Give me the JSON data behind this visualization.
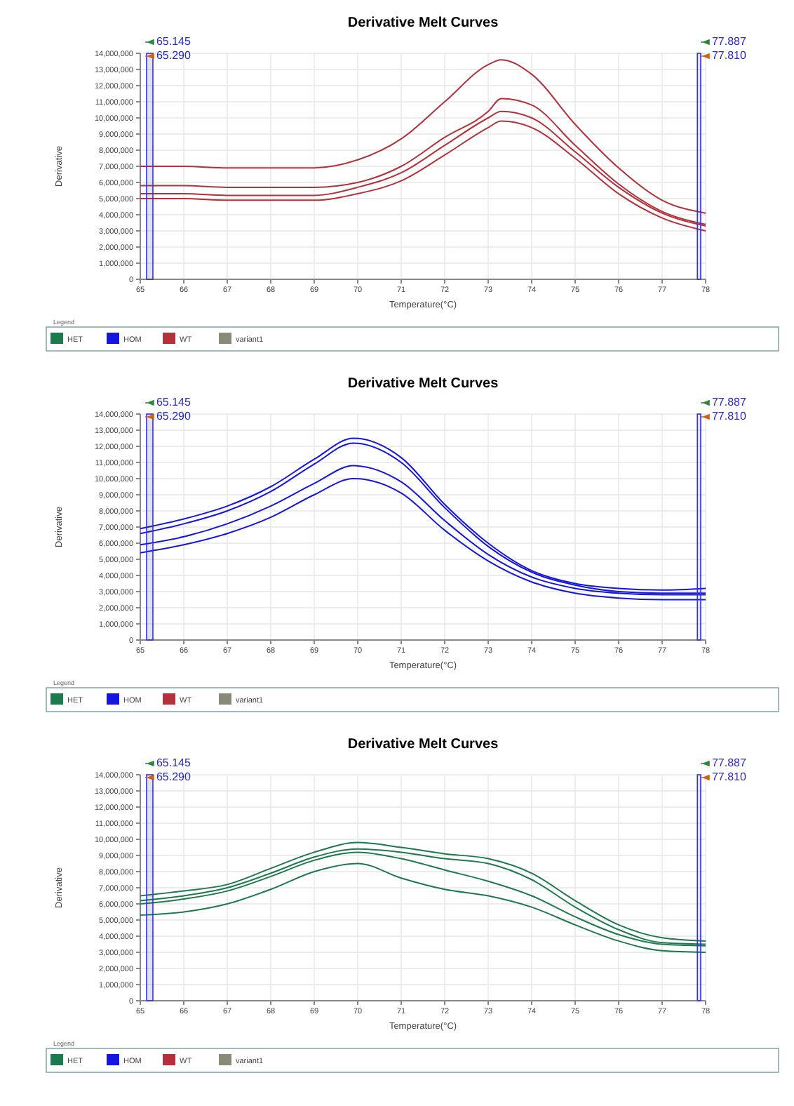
{
  "chart_data": [
    {
      "type": "line",
      "title": "Derivative Melt Curves",
      "xlabel": "Temperature(°C)",
      "ylabel": "Derivative",
      "legend_title": "Legend",
      "legend": "bottom",
      "grid": true,
      "marker": "none",
      "line_style": "solid",
      "x": [
        65,
        66,
        67,
        68,
        69,
        70,
        71,
        72,
        73,
        73.3,
        74,
        75,
        76,
        77,
        78
      ],
      "xlim": [
        65,
        78
      ],
      "xticks": [
        65,
        66,
        67,
        68,
        69,
        70,
        71,
        72,
        73,
        74,
        75,
        76,
        77,
        78
      ],
      "ylim": [
        0,
        14000000
      ],
      "yticks": [
        {
          "value": 0,
          "label": "0"
        },
        {
          "value": 1000000,
          "label": "1,000,000"
        },
        {
          "value": 2000000,
          "label": "2,000,000"
        },
        {
          "value": 3000000,
          "label": "3,000,000"
        },
        {
          "value": 4000000,
          "label": "4,000,000"
        },
        {
          "value": 5000000,
          "label": "5,000,000"
        },
        {
          "value": 6000000,
          "label": "6,000,000"
        },
        {
          "value": 7000000,
          "label": "7,000,000"
        },
        {
          "value": 8000000,
          "label": "8,000,000"
        },
        {
          "value": 9000000,
          "label": "9,000,000"
        },
        {
          "value": 10000000,
          "label": "10,000,000"
        },
        {
          "value": 11000000,
          "label": "11,000,000"
        },
        {
          "value": 12000000,
          "label": "12,000,000"
        },
        {
          "value": 13000000,
          "label": "13,000,000"
        },
        {
          "value": 14000000,
          "label": "14,000,000"
        }
      ],
      "bands": [
        {
          "axis": "x",
          "from": 65.145,
          "to": 65.29,
          "color": "#3333dd"
        },
        {
          "axis": "x",
          "from": 77.81,
          "to": 77.887,
          "color": "#3333dd"
        }
      ],
      "annotations": [
        "65.145",
        "65.290",
        "77.887",
        "77.810"
      ],
      "series": [
        {
          "name": "HET",
          "color": "#1d7a4c",
          "values": [
            null,
            null,
            null,
            null,
            null,
            null,
            null,
            null,
            null,
            null,
            null,
            null,
            null,
            null,
            null
          ]
        },
        {
          "name": "HOM",
          "color": "#1515e0",
          "values": [
            null,
            null,
            null,
            null,
            null,
            null,
            null,
            null,
            null,
            null,
            null,
            null,
            null,
            null,
            null
          ]
        },
        {
          "name": "WT",
          "color": "#b5303a",
          "values": [
            7000000,
            7000000,
            6900000,
            6900000,
            6900000,
            7400000,
            8700000,
            11000000,
            13300000,
            13600000,
            12700000,
            9600000,
            6900000,
            4900000,
            4100000
          ]
        },
        {
          "color": "#b5303a",
          "values": [
            5800000,
            5800000,
            5700000,
            5700000,
            5700000,
            6000000,
            7000000,
            8800000,
            10400000,
            11200000,
            10800000,
            8300000,
            5900000,
            4200000,
            3400000
          ]
        },
        {
          "color": "#b5303a",
          "values": [
            5300000,
            5300000,
            5200000,
            5200000,
            5200000,
            5700000,
            6600000,
            8300000,
            10000000,
            10400000,
            10000000,
            7900000,
            5700000,
            4100000,
            3300000
          ]
        },
        {
          "color": "#b5303a",
          "values": [
            5000000,
            5000000,
            4900000,
            4900000,
            4900000,
            5300000,
            6100000,
            7700000,
            9400000,
            9800000,
            9400000,
            7500000,
            5300000,
            3800000,
            3000000
          ]
        },
        {
          "name": "variant1",
          "color": "#8a8a78",
          "values": [
            null,
            null,
            null,
            null,
            null,
            null,
            null,
            null,
            null,
            null,
            null,
            null,
            null,
            null,
            null
          ]
        }
      ]
    },
    {
      "type": "line",
      "title": "Derivative Melt Curves",
      "xlabel": "Temperature(°C)",
      "ylabel": "Derivative",
      "legend_title": "Legend",
      "legend": "bottom",
      "grid": true,
      "marker": "none",
      "line_style": "solid",
      "x": [
        65,
        66,
        67,
        68,
        69,
        69.9,
        71,
        72,
        73,
        74,
        75,
        76,
        77,
        78
      ],
      "xlim": [
        65,
        78
      ],
      "xticks": [
        65,
        66,
        67,
        68,
        69,
        70,
        71,
        72,
        73,
        74,
        75,
        76,
        77,
        78
      ],
      "ylim": [
        0,
        14000000
      ],
      "yticks": [
        0,
        {
          "value": 1000000,
          "label": "1,000,000"
        },
        {
          "value": 2000000,
          "label": "2,000,000"
        },
        {
          "value": 3000000,
          "label": "3,000,000"
        },
        {
          "value": 4000000,
          "label": "4,000,000"
        },
        {
          "value": 5000000,
          "label": "5,000,000"
        },
        {
          "value": 6000000,
          "label": "6,000,000"
        },
        {
          "value": 7000000,
          "label": "7,000,000"
        },
        {
          "value": 8000000,
          "label": "8,000,000"
        },
        {
          "value": 9000000,
          "label": "9,000,000"
        },
        {
          "value": 10000000,
          "label": "10,000,000"
        },
        {
          "value": 11000000,
          "label": "11,000,000"
        },
        {
          "value": 12000000,
          "label": "12,000,000"
        },
        {
          "value": 13000000,
          "label": "13,000,000"
        },
        {
          "value": 14000000,
          "label": "14,000,000"
        }
      ],
      "bands": [
        {
          "axis": "x",
          "from": 65.145,
          "to": 65.29,
          "color": "#3333dd"
        },
        {
          "axis": "x",
          "from": 77.81,
          "to": 77.887,
          "color": "#3333dd"
        }
      ],
      "annotations": [
        "65.145",
        "65.290",
        "77.887",
        "77.810"
      ],
      "series": [
        {
          "name": "HET",
          "color": "#1d7a4c",
          "values": [
            null,
            null,
            null,
            null,
            null,
            null,
            null,
            null,
            null,
            null,
            null,
            null,
            null,
            null
          ]
        },
        {
          "name": "HOM",
          "color": "#1515e0",
          "values": [
            6900000,
            7500000,
            8300000,
            9500000,
            11200000,
            12500000,
            11300000,
            8400000,
            6000000,
            4300000,
            3500000,
            3200000,
            3100000,
            3200000
          ]
        },
        {
          "color": "#1515e0",
          "values": [
            6600000,
            7200000,
            8000000,
            9200000,
            10900000,
            12200000,
            11000000,
            8200000,
            5800000,
            4200000,
            3400000,
            3000000,
            2900000,
            2900000
          ]
        },
        {
          "color": "#1515e0",
          "values": [
            5900000,
            6400000,
            7200000,
            8300000,
            9700000,
            10800000,
            9800000,
            7400000,
            5300000,
            3900000,
            3200000,
            2900000,
            2800000,
            2800000
          ]
        },
        {
          "color": "#1515e0",
          "values": [
            5400000,
            5900000,
            6600000,
            7600000,
            9000000,
            10000000,
            9100000,
            6800000,
            4900000,
            3600000,
            2900000,
            2600000,
            2500000,
            2500000
          ]
        },
        {
          "name": "WT",
          "color": "#b5303a",
          "values": [
            null,
            null,
            null,
            null,
            null,
            null,
            null,
            null,
            null,
            null,
            null,
            null,
            null,
            null
          ]
        },
        {
          "name": "variant1",
          "color": "#8a8a78",
          "values": [
            null,
            null,
            null,
            null,
            null,
            null,
            null,
            null,
            null,
            null,
            null,
            null,
            null,
            null
          ]
        }
      ]
    },
    {
      "type": "line",
      "title": "Derivative Melt Curves",
      "xlabel": "Temperature(°C)",
      "ylabel": "Derivative",
      "legend_title": "Legend",
      "legend": "bottom",
      "grid": true,
      "marker": "none",
      "line_style": "solid",
      "x": [
        65,
        66,
        67,
        68,
        69,
        70,
        71,
        72,
        73,
        74,
        75,
        76,
        77,
        78
      ],
      "xlim": [
        65,
        78
      ],
      "xticks": [
        65,
        66,
        67,
        68,
        69,
        70,
        71,
        72,
        73,
        74,
        75,
        76,
        77,
        78
      ],
      "ylim": [
        0,
        14000000
      ],
      "yticks": [
        0,
        {
          "value": 1000000,
          "label": "1,000,000"
        },
        {
          "value": 2000000,
          "label": "2,000,000"
        },
        {
          "value": 3000000,
          "label": "3,000,000"
        },
        {
          "value": 4000000,
          "label": "4,000,000"
        },
        {
          "value": 5000000,
          "label": "5,000,000"
        },
        {
          "value": 6000000,
          "label": "6,000,000"
        },
        {
          "value": 7000000,
          "label": "7,000,000"
        },
        {
          "value": 8000000,
          "label": "8,000,000"
        },
        {
          "value": 9000000,
          "label": "9,000,000"
        },
        {
          "value": 10000000,
          "label": "10,000,000"
        },
        {
          "value": 11000000,
          "label": "11,000,000"
        },
        {
          "value": 12000000,
          "label": "12,000,000"
        },
        {
          "value": 13000000,
          "label": "13,000,000"
        },
        {
          "value": 14000000,
          "label": "14,000,000"
        }
      ],
      "bands": [
        {
          "axis": "x",
          "from": 65.145,
          "to": 65.29,
          "color": "#3333dd"
        },
        {
          "axis": "x",
          "from": 77.81,
          "to": 77.887,
          "color": "#3333dd"
        }
      ],
      "annotations": [
        "65.145",
        "65.290",
        "77.887",
        "77.810"
      ],
      "series": [
        {
          "name": "HET",
          "color": "#1d7a4c",
          "values": [
            6500000,
            6800000,
            7200000,
            8200000,
            9200000,
            9800000,
            9500000,
            9100000,
            8800000,
            7900000,
            6200000,
            4700000,
            3900000,
            3700000
          ]
        },
        {
          "color": "#1d7a4c",
          "values": [
            6200000,
            6500000,
            7000000,
            7900000,
            8900000,
            9400000,
            9200000,
            8800000,
            8500000,
            7500000,
            5800000,
            4400000,
            3600000,
            3500000
          ]
        },
        {
          "color": "#1d7a4c",
          "values": [
            6000000,
            6300000,
            6800000,
            7700000,
            8700000,
            9200000,
            8800000,
            8100000,
            7400000,
            6500000,
            5200000,
            4100000,
            3500000,
            3400000
          ]
        },
        {
          "color": "#1d7a4c",
          "values": [
            5300000,
            5500000,
            6000000,
            6900000,
            8000000,
            8500000,
            7600000,
            6900000,
            6500000,
            5800000,
            4700000,
            3700000,
            3100000,
            3000000
          ]
        },
        {
          "name": "HOM",
          "color": "#1515e0",
          "values": [
            null,
            null,
            null,
            null,
            null,
            null,
            null,
            null,
            null,
            null,
            null,
            null,
            null,
            null
          ]
        },
        {
          "name": "WT",
          "color": "#b5303a",
          "values": [
            null,
            null,
            null,
            null,
            null,
            null,
            null,
            null,
            null,
            null,
            null,
            null,
            null,
            null
          ]
        },
        {
          "name": "variant1",
          "color": "#8a8a78",
          "values": [
            null,
            null,
            null,
            null,
            null,
            null,
            null,
            null,
            null,
            null,
            null,
            null,
            null,
            null
          ]
        }
      ]
    }
  ]
}
